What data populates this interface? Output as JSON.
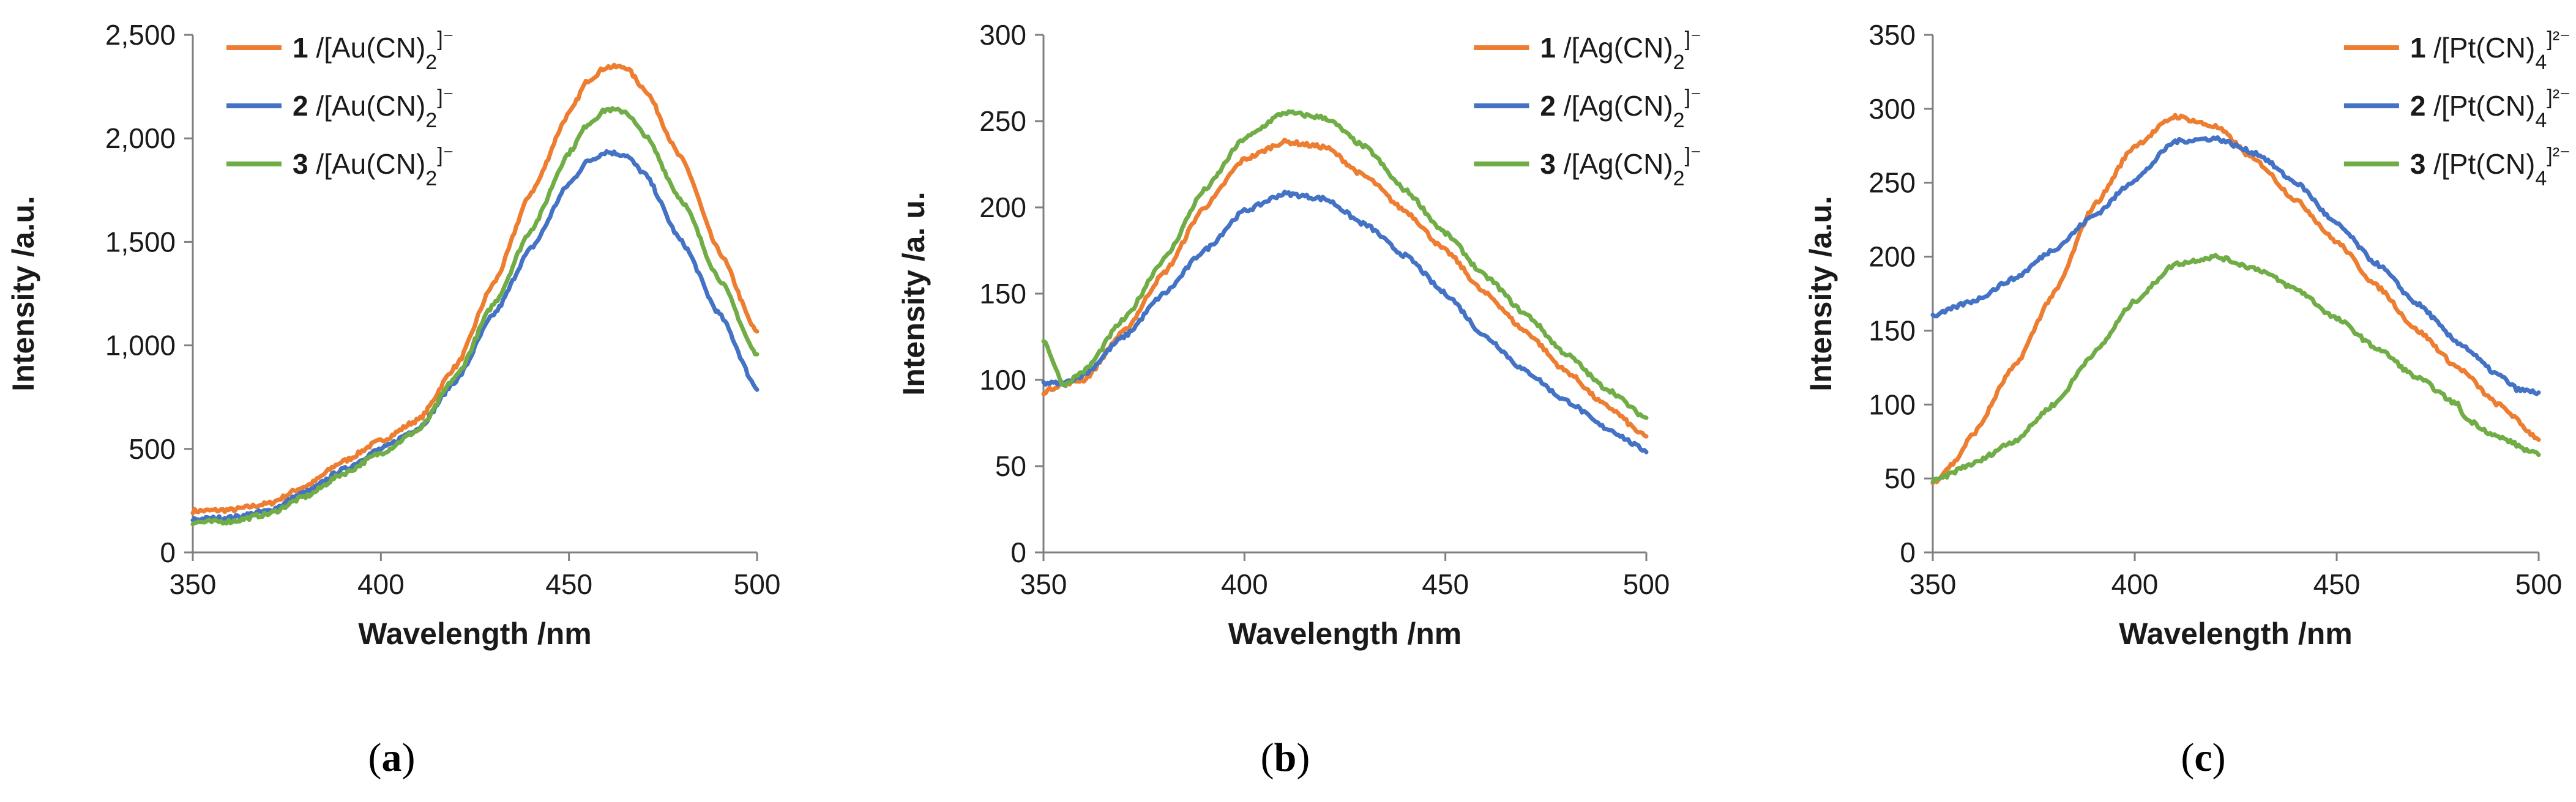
{
  "colors": {
    "series1": "#ED7D31",
    "series2": "#4472C4",
    "series3": "#70AD47",
    "axis": "#7f7f7f",
    "text": "#1a1a1a"
  },
  "chart_data": [
    {
      "type": "line",
      "caption": {
        "open": "(",
        "letter": "a",
        "close": ")"
      },
      "xlabel": "Wavelength /nm",
      "ylabel": "Intensity /a.u.",
      "xlim": [
        350,
        500
      ],
      "ylim": [
        0,
        2500
      ],
      "xticks": [
        350,
        400,
        450,
        500
      ],
      "yticks": [
        0,
        500,
        1000,
        1500,
        2000,
        2500
      ],
      "ytick_labels": [
        "0",
        "500",
        "1,000",
        "1,500",
        "2,000",
        "2,500"
      ],
      "legend_position": "top-left",
      "series": [
        {
          "num": "1",
          "name": " /[Au(CN)",
          "sub": "2",
          "sup": "]⁻",
          "x": [
            350,
            360,
            370,
            380,
            390,
            400,
            410,
            420,
            430,
            440,
            450,
            455,
            460,
            465,
            470,
            480,
            490,
            500
          ],
          "y": [
            200,
            205,
            235,
            320,
            440,
            540,
            640,
            900,
            1300,
            1740,
            2120,
            2280,
            2345,
            2345,
            2240,
            1900,
            1450,
            1060
          ]
        },
        {
          "num": "2",
          "name": " /[Au(CN)",
          "sub": "2",
          "sup": "]⁻",
          "x": [
            350,
            360,
            370,
            380,
            390,
            400,
            410,
            420,
            430,
            440,
            450,
            455,
            460,
            465,
            470,
            480,
            490,
            500
          ],
          "y": [
            160,
            168,
            200,
            290,
            400,
            500,
            600,
            830,
            1150,
            1470,
            1780,
            1890,
            1935,
            1920,
            1830,
            1500,
            1150,
            790
          ]
        },
        {
          "num": "3",
          "name": " /[Au(CN)",
          "sub": "2",
          "sup": "]⁻",
          "x": [
            350,
            360,
            370,
            380,
            390,
            400,
            410,
            420,
            430,
            440,
            450,
            455,
            460,
            465,
            470,
            480,
            490,
            500
          ],
          "y": [
            145,
            150,
            185,
            270,
            380,
            480,
            590,
            850,
            1200,
            1560,
            1930,
            2070,
            2140,
            2130,
            2020,
            1700,
            1320,
            950
          ]
        }
      ]
    },
    {
      "type": "line",
      "caption": {
        "open": "(",
        "letter": "b",
        "close": ")"
      },
      "xlabel": "Wavelength /nm",
      "ylabel": "Intensity /a. u.",
      "xlim": [
        350,
        500
      ],
      "ylim": [
        0,
        300
      ],
      "xticks": [
        350,
        400,
        450,
        500
      ],
      "yticks": [
        0,
        50,
        100,
        150,
        200,
        250,
        300
      ],
      "ytick_labels": [
        "0",
        "50",
        "100",
        "150",
        "200",
        "250",
        "300"
      ],
      "legend_position": "top-right",
      "series": [
        {
          "num": "1",
          "name": " /[Ag(CN)",
          "sub": "2",
          "sup": "]⁻",
          "x": [
            350,
            355,
            360,
            370,
            380,
            390,
            400,
            410,
            420,
            430,
            440,
            450,
            460,
            470,
            480,
            490,
            500
          ],
          "y": [
            93,
            98,
            100,
            128,
            162,
            200,
            228,
            238,
            235,
            218,
            198,
            175,
            150,
            128,
            105,
            85,
            67
          ]
        },
        {
          "num": "2",
          "name": " /[Ag(CN)",
          "sub": "2",
          "sup": "]⁻",
          "x": [
            350,
            355,
            360,
            370,
            380,
            390,
            400,
            410,
            420,
            430,
            440,
            450,
            460,
            470,
            480,
            490,
            500
          ],
          "y": [
            98,
            98,
            103,
            125,
            150,
            175,
            198,
            208,
            205,
            190,
            172,
            150,
            125,
            105,
            88,
            72,
            59
          ]
        },
        {
          "num": "3",
          "name": " /[Ag(CN)",
          "sub": "2",
          "sup": "]⁻",
          "x": [
            350,
            355,
            360,
            370,
            380,
            390,
            400,
            410,
            420,
            430,
            440,
            450,
            460,
            470,
            480,
            490,
            500
          ],
          "y": [
            123,
            97,
            105,
            135,
            170,
            210,
            240,
            255,
            252,
            235,
            210,
            185,
            160,
            138,
            115,
            95,
            78
          ]
        }
      ]
    },
    {
      "type": "line",
      "caption": {
        "open": "(",
        "letter": "c",
        "close": ")"
      },
      "xlabel": "Wavelength /nm",
      "ylabel": "Intensity /a.u.",
      "xlim": [
        350,
        500
      ],
      "ylim": [
        0,
        350
      ],
      "xticks": [
        350,
        400,
        450,
        500
      ],
      "yticks": [
        0,
        50,
        100,
        150,
        200,
        250,
        300,
        350
      ],
      "ytick_labels": [
        "0",
        "50",
        "100",
        "150",
        "200",
        "250",
        "300",
        "350"
      ],
      "legend_position": "top-right",
      "series": [
        {
          "num": "1",
          "name": " /[Pt(CN)",
          "sub": "4",
          "sup": "]²⁻",
          "x": [
            350,
            355,
            360,
            370,
            380,
            390,
            400,
            410,
            420,
            430,
            440,
            450,
            460,
            470,
            480,
            490,
            500
          ],
          "y": [
            47,
            60,
            80,
            125,
            175,
            235,
            275,
            295,
            288,
            265,
            238,
            210,
            180,
            150,
            125,
            100,
            77
          ]
        },
        {
          "num": "2",
          "name": " /[Pt(CN)",
          "sub": "4",
          "sup": "]²⁻",
          "x": [
            350,
            360,
            370,
            380,
            390,
            400,
            410,
            420,
            430,
            440,
            450,
            460,
            470,
            480,
            490,
            495,
            500
          ],
          "y": [
            160,
            170,
            185,
            205,
            228,
            252,
            278,
            280,
            270,
            250,
            222,
            195,
            168,
            142,
            120,
            110,
            108
          ]
        },
        {
          "num": "3",
          "name": " /[Pt(CN)",
          "sub": "4",
          "sup": "]²⁻",
          "x": [
            350,
            360,
            370,
            380,
            390,
            400,
            410,
            420,
            430,
            440,
            450,
            460,
            470,
            480,
            482,
            490,
            500
          ],
          "y": [
            48,
            60,
            75,
            100,
            135,
            170,
            195,
            200,
            192,
            178,
            158,
            138,
            118,
            100,
            90,
            78,
            66
          ]
        }
      ]
    }
  ]
}
